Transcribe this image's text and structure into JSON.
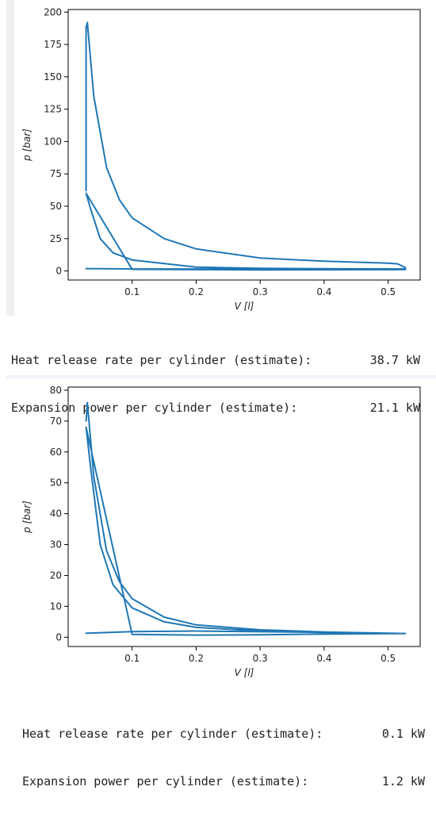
{
  "chart_data": [
    {
      "type": "line",
      "xlabel": "V [l]",
      "ylabel": "p [bar]",
      "xlim": [
        0.0,
        0.55
      ],
      "ylim": [
        -7,
        202
      ],
      "x_ticks": [
        "0.1",
        "0.2",
        "0.3",
        "0.4",
        "0.5"
      ],
      "y_ticks": [
        "0",
        "25",
        "50",
        "75",
        "100",
        "125",
        "150",
        "175",
        "200"
      ],
      "grid": false,
      "series": [
        {
          "color": "#1f77b4",
          "x": [
            0.028,
            0.028,
            0.028,
            0.03,
            0.04,
            0.06,
            0.08,
            0.1,
            0.15,
            0.2,
            0.3,
            0.4,
            0.5,
            0.515,
            0.527,
            0.527,
            0.4,
            0.3,
            0.2,
            0.1,
            0.07,
            0.05,
            0.035,
            0.028,
            0.1,
            0.3,
            0.527,
            0.3,
            0.1,
            0.028
          ],
          "y": [
            62,
            150,
            188,
            192,
            135,
            80,
            55,
            41,
            25,
            17,
            10,
            7.5,
            6,
            5.5,
            2.5,
            1.5,
            1.7,
            2.0,
            3.0,
            8.5,
            14,
            25,
            48,
            60,
            1.3,
            0.8,
            1.0,
            1.4,
            1.6,
            1.8
          ]
        }
      ]
    },
    {
      "type": "line",
      "xlabel": "V [l]",
      "ylabel": "p [bar]",
      "xlim": [
        0.0,
        0.55
      ],
      "ylim": [
        -3,
        81
      ],
      "x_ticks": [
        "0.1",
        "0.2",
        "0.3",
        "0.4",
        "0.5"
      ],
      "y_ticks": [
        "0",
        "10",
        "20",
        "30",
        "40",
        "50",
        "60",
        "70",
        "80"
      ],
      "grid": false,
      "series": [
        {
          "color": "#1f77b4",
          "x": [
            0.028,
            0.03,
            0.04,
            0.06,
            0.08,
            0.1,
            0.15,
            0.2,
            0.3,
            0.4,
            0.5,
            0.527,
            0.4,
            0.3,
            0.2,
            0.15,
            0.1,
            0.07,
            0.05,
            0.035,
            0.028,
            0.1,
            0.2,
            0.3,
            0.4,
            0.527,
            0.4,
            0.2,
            0.1,
            0.028
          ],
          "y": [
            70,
            76,
            52,
            28,
            18,
            12.5,
            6.5,
            4.0,
            2.4,
            1.7,
            1.3,
            1.2,
            1.5,
            2.0,
            3.2,
            5.0,
            9.5,
            17,
            30,
            55,
            68,
            0.9,
            0.7,
            0.8,
            1.0,
            1.2,
            1.6,
            2.0,
            1.8,
            1.3
          ]
        }
      ]
    }
  ],
  "outputs": [
    {
      "line1_label": "Heat release rate per cylinder (estimate):",
      "line1_value": "38.7 kW",
      "line2_label": "Expansion power per cylinder (estimate):",
      "line2_value": "21.1 kW"
    },
    {
      "line1_label": "Heat release rate per cylinder (estimate):",
      "line1_value": "0.1 kW",
      "line2_label": "Expansion power per cylinder (estimate):",
      "line2_value": "1.2 kW"
    }
  ]
}
